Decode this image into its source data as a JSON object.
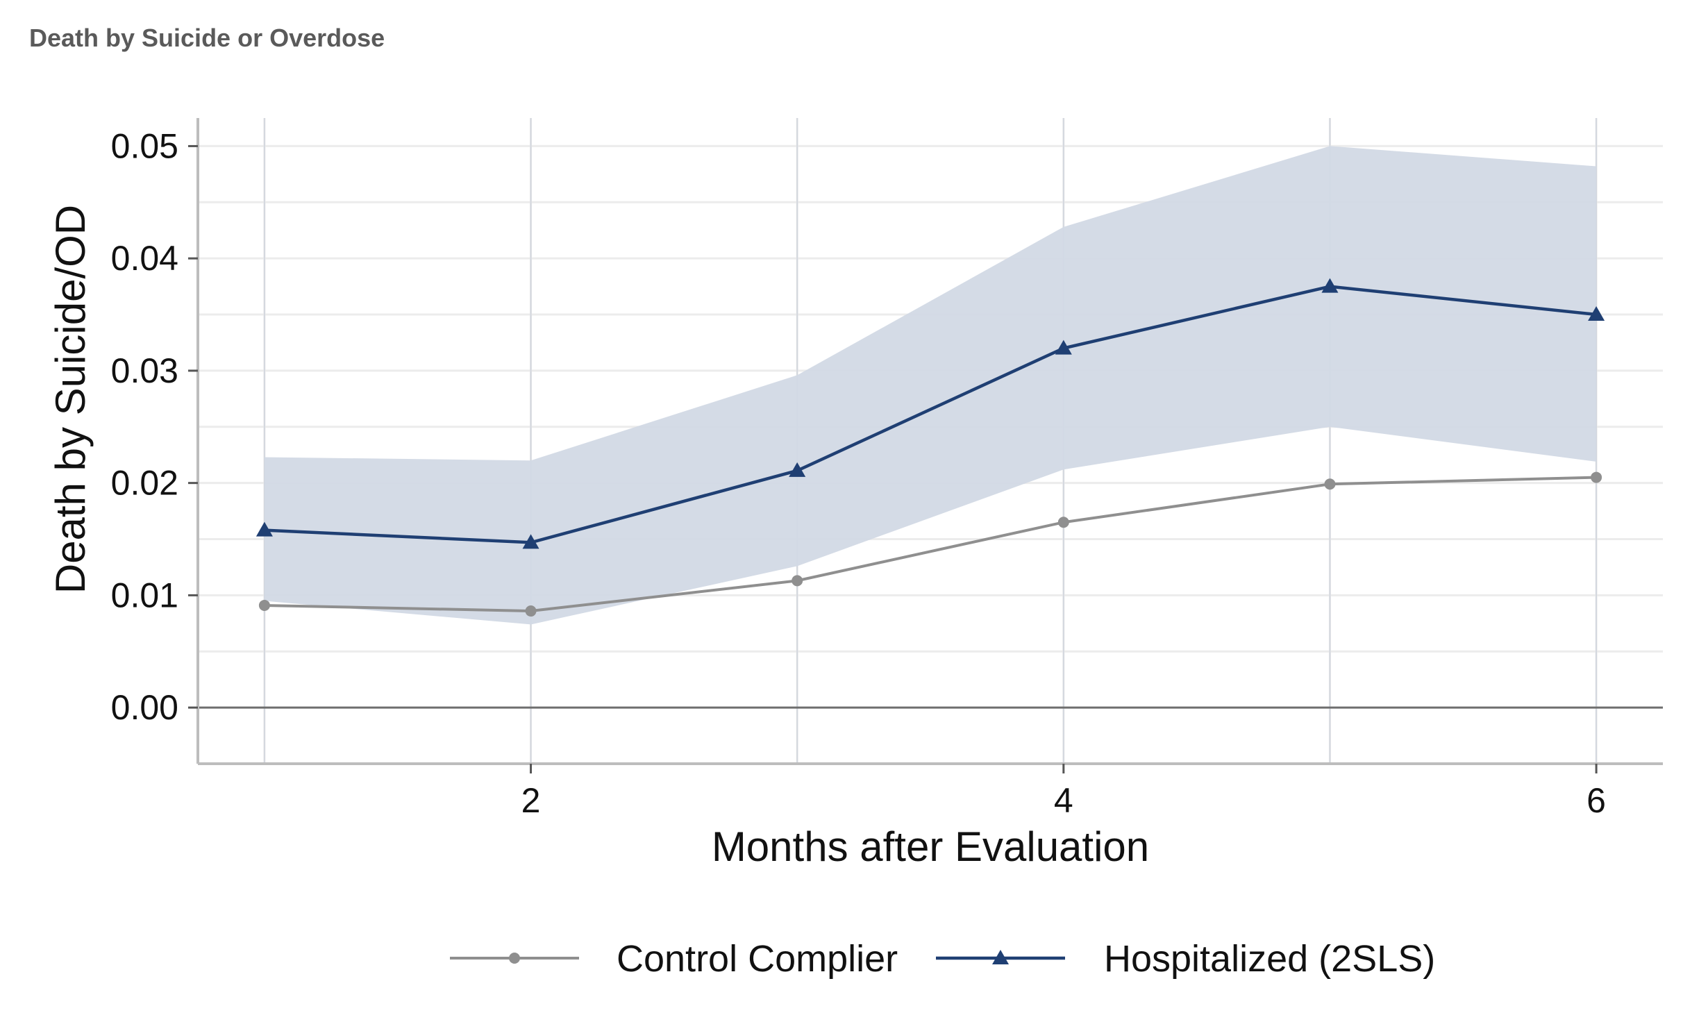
{
  "figure_title": "Death by Suicide or Overdose",
  "colors": {
    "control": "#8f8f8f",
    "hospitalized": "#1f3f73",
    "ci_band": "#d2d9e5",
    "grid": "#ececec",
    "zero_line": "#6e6e6e",
    "axis": "#bdbdbd"
  },
  "chart_data": {
    "type": "line",
    "title": "Death by Suicide or Overdose",
    "xlabel": "Months after Evaluation",
    "ylabel": "Death by Suicide/OD",
    "x": [
      1,
      2,
      3,
      4,
      5,
      6
    ],
    "xlim": [
      0.75,
      6.25
    ],
    "ylim": [
      -0.005,
      0.0525
    ],
    "xticks": [
      2,
      4,
      6
    ],
    "xtick_labels": [
      "2",
      "4",
      "6"
    ],
    "yticks": [
      0.0,
      0.01,
      0.02,
      0.03,
      0.04,
      0.05
    ],
    "ytick_labels": [
      "0.00",
      "0.01",
      "0.02",
      "0.03",
      "0.04",
      "0.05"
    ],
    "grid": true,
    "legend_position": "bottom",
    "series": [
      {
        "name": "Control Complier",
        "marker": "circle",
        "values": [
          0.0091,
          0.0086,
          0.0113,
          0.0165,
          0.0199,
          0.0205
        ]
      },
      {
        "name": "Hospitalized (2SLS)",
        "marker": "triangle",
        "values": [
          0.0158,
          0.0147,
          0.0211,
          0.032,
          0.0375,
          0.035
        ],
        "ci_lower": [
          0.0095,
          0.0074,
          0.0126,
          0.0212,
          0.025,
          0.0219
        ],
        "ci_upper": [
          0.0223,
          0.022,
          0.0296,
          0.0428,
          0.05,
          0.0482
        ]
      }
    ]
  }
}
